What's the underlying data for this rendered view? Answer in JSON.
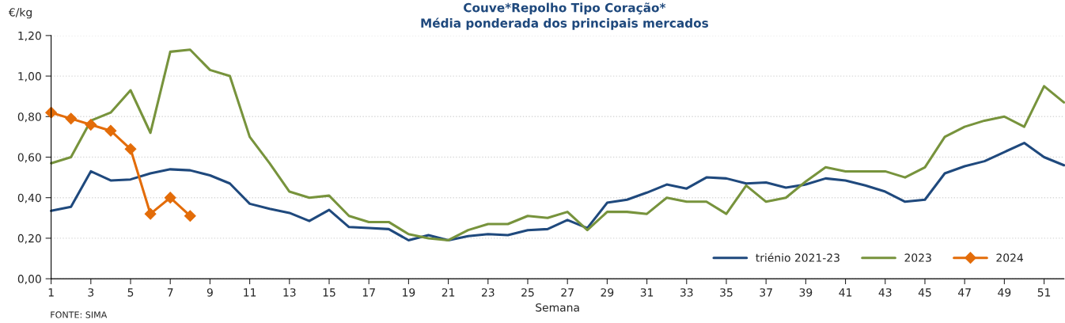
{
  "chart_data": {
    "type": "line",
    "title": "Couve*Repolho Tipo Coração*",
    "subtitle": "Média ponderada dos principais mercados",
    "xlabel": "Semana",
    "ylabel": "€/kg",
    "x": [
      1,
      2,
      3,
      4,
      5,
      6,
      7,
      8,
      9,
      10,
      11,
      12,
      13,
      14,
      15,
      16,
      17,
      18,
      19,
      20,
      21,
      22,
      23,
      24,
      25,
      26,
      27,
      28,
      29,
      30,
      31,
      32,
      33,
      34,
      35,
      36,
      37,
      38,
      39,
      40,
      41,
      42,
      43,
      44,
      45,
      46,
      47,
      48,
      49,
      50,
      51,
      52
    ],
    "series": [
      {
        "name": "triénio 2021-23",
        "color": "#1f497d",
        "values": [
          0.335,
          0.355,
          0.53,
          0.485,
          0.49,
          0.52,
          0.54,
          0.535,
          0.51,
          0.47,
          0.37,
          0.345,
          0.325,
          0.285,
          0.34,
          0.255,
          0.25,
          0.245,
          0.19,
          0.215,
          0.19,
          0.21,
          0.22,
          0.215,
          0.24,
          0.245,
          0.29,
          0.25,
          0.375,
          0.39,
          0.425,
          0.465,
          0.445,
          0.5,
          0.495,
          0.47,
          0.475,
          0.45,
          0.465,
          0.495,
          0.485,
          0.46,
          0.43,
          0.38,
          0.39,
          0.52,
          0.555,
          0.58,
          0.625,
          0.67,
          0.6,
          0.56
        ]
      },
      {
        "name": "2023",
        "color": "#77933c",
        "values": [
          0.57,
          0.6,
          0.78,
          0.82,
          0.93,
          0.72,
          1.12,
          1.13,
          1.03,
          1.0,
          0.7,
          0.57,
          0.43,
          0.4,
          0.41,
          0.31,
          0.28,
          0.28,
          0.22,
          0.2,
          0.19,
          0.24,
          0.27,
          0.27,
          0.31,
          0.3,
          0.33,
          0.24,
          0.33,
          0.33,
          0.32,
          0.4,
          0.38,
          0.38,
          0.32,
          0.46,
          0.38,
          0.4,
          0.48,
          0.55,
          0.53,
          0.53,
          0.53,
          0.5,
          0.55,
          0.7,
          0.75,
          0.78,
          0.8,
          0.75,
          0.95,
          0.87
        ]
      },
      {
        "name": "2024",
        "color": "#e36c09",
        "marker": "diamond",
        "x": [
          1,
          2,
          3,
          4,
          5,
          6,
          7,
          8
        ],
        "values": [
          0.82,
          0.79,
          0.76,
          0.73,
          0.64,
          0.32,
          0.4,
          0.31
        ]
      }
    ],
    "xlim": [
      1,
      52
    ],
    "xticks": [
      1,
      3,
      5,
      7,
      9,
      11,
      13,
      15,
      17,
      19,
      21,
      23,
      25,
      27,
      29,
      31,
      33,
      35,
      37,
      39,
      41,
      43,
      45,
      47,
      49,
      51
    ],
    "ylim": [
      0,
      1.2
    ],
    "yticks": [
      {
        "value": 0,
        "label": "0,00"
      },
      {
        "value": 0.2,
        "label": "0,20"
      },
      {
        "value": 0.4,
        "label": "0,40"
      },
      {
        "value": 0.6,
        "label": "0,60"
      },
      {
        "value": 0.8,
        "label": "0,80"
      },
      {
        "value": 1.0,
        "label": "1,00"
      },
      {
        "value": 1.2,
        "label": "1,20"
      }
    ],
    "grid": "y",
    "legend": "bottom right",
    "line_style": "solid",
    "annotations": [
      "FONTE: SIMA"
    ]
  }
}
